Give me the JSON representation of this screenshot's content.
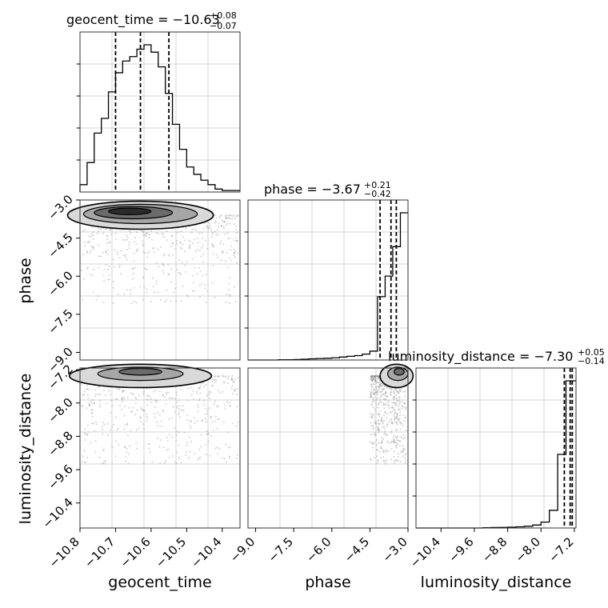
{
  "chart_data": {
    "type": "corner",
    "parameters": [
      "geocent_time",
      "phase",
      "luminosity_distance"
    ],
    "panels": [
      {
        "id": "hist-geocent_time",
        "type": "histogram",
        "parameter": "geocent_time",
        "title_main": "geocent_time = −10.63",
        "title_sup": "+0.08",
        "title_sub": "−0.07",
        "xlim": [
          -10.8,
          -10.35
        ],
        "bins": [
          -10.8,
          -10.78,
          -10.76,
          -10.74,
          -10.72,
          -10.7,
          -10.68,
          -10.66,
          -10.64,
          -10.62,
          -10.6,
          -10.58,
          -10.56,
          -10.54,
          -10.52,
          -10.5,
          -10.48,
          -10.46,
          -10.44,
          -10.42,
          -10.4,
          -10.38,
          -10.35
        ],
        "counts": [
          0.05,
          0.2,
          0.4,
          0.5,
          0.68,
          0.81,
          0.89,
          0.92,
          0.97,
          1.0,
          0.95,
          0.85,
          0.67,
          0.46,
          0.29,
          0.17,
          0.12,
          0.08,
          0.05,
          0.02,
          0.01,
          0.01
        ],
        "quantiles": [
          -10.7,
          -10.63,
          -10.55
        ],
        "grid": true
      },
      {
        "id": "hist-phase",
        "type": "histogram",
        "parameter": "phase",
        "title_main": "phase = −3.67",
        "title_sup": "+0.21",
        "title_sub": "−0.42",
        "xlim": [
          -9.3,
          -3.0
        ],
        "bins": [
          -9.3,
          -9.0,
          -8.7,
          -8.4,
          -8.1,
          -7.8,
          -7.5,
          -7.2,
          -6.9,
          -6.6,
          -6.3,
          -6.0,
          -5.7,
          -5.4,
          -5.1,
          -4.8,
          -4.5,
          -4.2,
          -3.9,
          -3.6,
          -3.3,
          -3.0
        ],
        "counts": [
          0.0,
          0.0,
          0.0,
          0.0,
          0.002,
          0.002,
          0.003,
          0.005,
          0.008,
          0.01,
          0.012,
          0.015,
          0.02,
          0.025,
          0.03,
          0.04,
          0.06,
          0.43,
          0.57,
          0.77,
          1.0
        ],
        "quantiles": [
          -4.1,
          -3.67,
          -3.46
        ],
        "grid": true
      },
      {
        "id": "hist-luminosity_distance",
        "type": "histogram",
        "parameter": "luminosity_distance",
        "title_main": "luminosity_distance = −7.30",
        "title_sup": "+0.05",
        "title_sub": "−0.14",
        "xlim": [
          -11.0,
          -7.16
        ],
        "bins": [
          -11.0,
          -10.8,
          -10.6,
          -10.4,
          -10.2,
          -10.0,
          -9.8,
          -9.6,
          -9.4,
          -9.2,
          -9.0,
          -8.8,
          -8.6,
          -8.4,
          -8.2,
          -8.0,
          -7.8,
          -7.6,
          -7.4,
          -7.16
        ],
        "counts": [
          0.0,
          0.0,
          0.0,
          0.0,
          0.0,
          0.0,
          0.0,
          0.0,
          0.002,
          0.003,
          0.004,
          0.005,
          0.008,
          0.012,
          0.02,
          0.04,
          0.12,
          0.5,
          1.0
        ],
        "quantiles": [
          -7.44,
          -7.3,
          -7.25
        ],
        "grid": true
      },
      {
        "id": "density-phase-vs-geocent_time",
        "type": "density2d",
        "x": "geocent_time",
        "y": "phase",
        "xlim": [
          -10.8,
          -10.35
        ],
        "ylim": [
          -9.3,
          -3.0
        ],
        "yticks": [
          -3.0,
          -4.5,
          -6.0,
          -7.5,
          -9.0
        ],
        "ytick_labels": [
          "−3.0",
          "−4.5",
          "−6.0",
          "−7.5",
          "−9.0"
        ],
        "ylabel": "phase",
        "contour_levels": [
          {
            "cx": -10.63,
            "cy": -3.6,
            "rx": 0.205,
            "ry": 0.55
          },
          {
            "cx": -10.63,
            "cy": -3.55,
            "rx": 0.16,
            "ry": 0.38
          },
          {
            "cx": -10.65,
            "cy": -3.5,
            "rx": 0.11,
            "ry": 0.24
          },
          {
            "cx": -10.66,
            "cy": -3.45,
            "rx": 0.06,
            "ry": 0.13
          }
        ],
        "grid": true
      },
      {
        "id": "density-luminosity_distance-vs-geocent_time",
        "type": "density2d",
        "x": "geocent_time",
        "y": "luminosity_distance",
        "xlim": [
          -10.8,
          -10.35
        ],
        "ylim": [
          -11.0,
          -7.16
        ],
        "xticks": [
          -10.8,
          -10.7,
          -10.6,
          -10.5,
          -10.4
        ],
        "xtick_labels": [
          "−10.8",
          "−10.7",
          "−10.6",
          "−10.5",
          "−10.4"
        ],
        "xlabel": "geocent_time",
        "yticks": [
          -7.2,
          -8.0,
          -8.8,
          -9.6,
          -10.4
        ],
        "ytick_labels": [
          "−7.2",
          "−8.0",
          "−8.8",
          "−9.6",
          "−10.4"
        ],
        "ylabel": "luminosity_distance",
        "contour_levels": [
          {
            "cx": -10.63,
            "cy": -7.35,
            "rx": 0.2,
            "ry": 0.28
          },
          {
            "cx": -10.63,
            "cy": -7.3,
            "rx": 0.12,
            "ry": 0.16
          },
          {
            "cx": -10.63,
            "cy": -7.25,
            "rx": 0.06,
            "ry": 0.08
          }
        ],
        "grid": true
      },
      {
        "id": "density-luminosity_distance-vs-phase",
        "type": "density2d",
        "x": "phase",
        "y": "luminosity_distance",
        "xlim": [
          -9.3,
          -3.0
        ],
        "ylim": [
          -11.0,
          -7.16
        ],
        "xticks": [
          -9.0,
          -7.5,
          -6.0,
          -4.5,
          -3.0
        ],
        "xtick_labels": [
          "−9.0",
          "−7.5",
          "−6.0",
          "−4.5",
          "−3.0"
        ],
        "xlabel": "phase",
        "contour_levels": [
          {
            "cx": -3.45,
            "cy": -7.35,
            "rx": 0.65,
            "ry": 0.28
          },
          {
            "cx": -3.4,
            "cy": -7.3,
            "rx": 0.4,
            "ry": 0.16
          },
          {
            "cx": -3.35,
            "cy": -7.25,
            "rx": 0.2,
            "ry": 0.08
          }
        ],
        "grid": true
      }
    ],
    "hist3_xticks": [
      -10.4,
      -9.6,
      -8.8,
      -8.0,
      -7.2
    ],
    "hist3_xtick_labels": [
      "−10.4",
      "−9.6",
      "−8.8",
      "−8.0",
      "−7.2"
    ],
    "hist3_xlabel": "luminosity_distance"
  }
}
